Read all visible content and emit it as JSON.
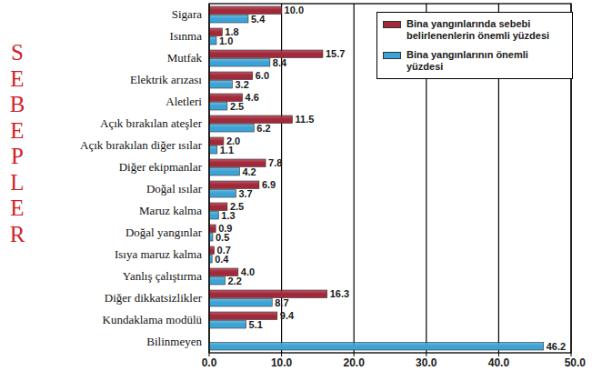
{
  "chart_data": {
    "type": "bar",
    "orientation": "horizontal",
    "y_label": "SEBEPLER",
    "categories": [
      "Sigara",
      "Isınma",
      "Mutfak",
      "Elektrik arızası",
      "Aletleri",
      "Açık bırakılan ateşler",
      "Açık bırakılan diğer ısılar",
      "Diğer ekipmanlar",
      "Doğal ısılar",
      "Maruz kalma",
      "Doğal yangınlar",
      "Isıya maruz kalma",
      "Yanlış çalıştırma",
      "Diğer dikkatsizlikler",
      "Kundaklama modülü",
      "Bilinmeyen"
    ],
    "series": [
      {
        "name": "Bina yangınlarında sebebi belirlenenlerin önemli yüzdesi",
        "color": "#a3283a",
        "values": [
          10.0,
          1.8,
          15.7,
          6.0,
          4.6,
          11.5,
          2.0,
          7.8,
          6.9,
          2.5,
          0.9,
          0.7,
          4.0,
          16.3,
          9.4,
          null
        ],
        "value_labels": [
          "10.0",
          "1.8",
          "15.7",
          "6.0",
          "4.6",
          "11.5",
          "2.0",
          "7.8",
          "6.9",
          "2.5",
          "0.9",
          "0.7",
          "4.0",
          "16.3",
          "9.4",
          null
        ]
      },
      {
        "name": "Bina yangınlarının önemli yüzdesi",
        "color": "#3ca3d6",
        "values": [
          5.4,
          1.0,
          8.4,
          3.2,
          2.5,
          6.2,
          1.1,
          4.2,
          3.7,
          1.3,
          0.5,
          0.4,
          2.2,
          8.7,
          5.1,
          46.2
        ],
        "value_labels": [
          "5.4",
          "1.0",
          "8.4",
          "3.2",
          "2.5",
          "6.2",
          "1.1",
          "4.2",
          "3.7",
          "1.3",
          "0.5",
          "0.4",
          "2.2",
          "8.7",
          "5.1",
          "46.2"
        ]
      }
    ],
    "xlim": [
      0,
      50
    ],
    "xticks": [
      {
        "value": 0,
        "label": "0.0"
      },
      {
        "value": 10,
        "label": "10.0"
      },
      {
        "value": 20,
        "label": "20.0"
      },
      {
        "value": 30,
        "label": "30.0"
      },
      {
        "value": 40,
        "label": "40.0"
      },
      {
        "value": 50,
        "label": "50.0"
      }
    ],
    "grid": true,
    "legend": "upper right",
    "data_labels": true
  }
}
